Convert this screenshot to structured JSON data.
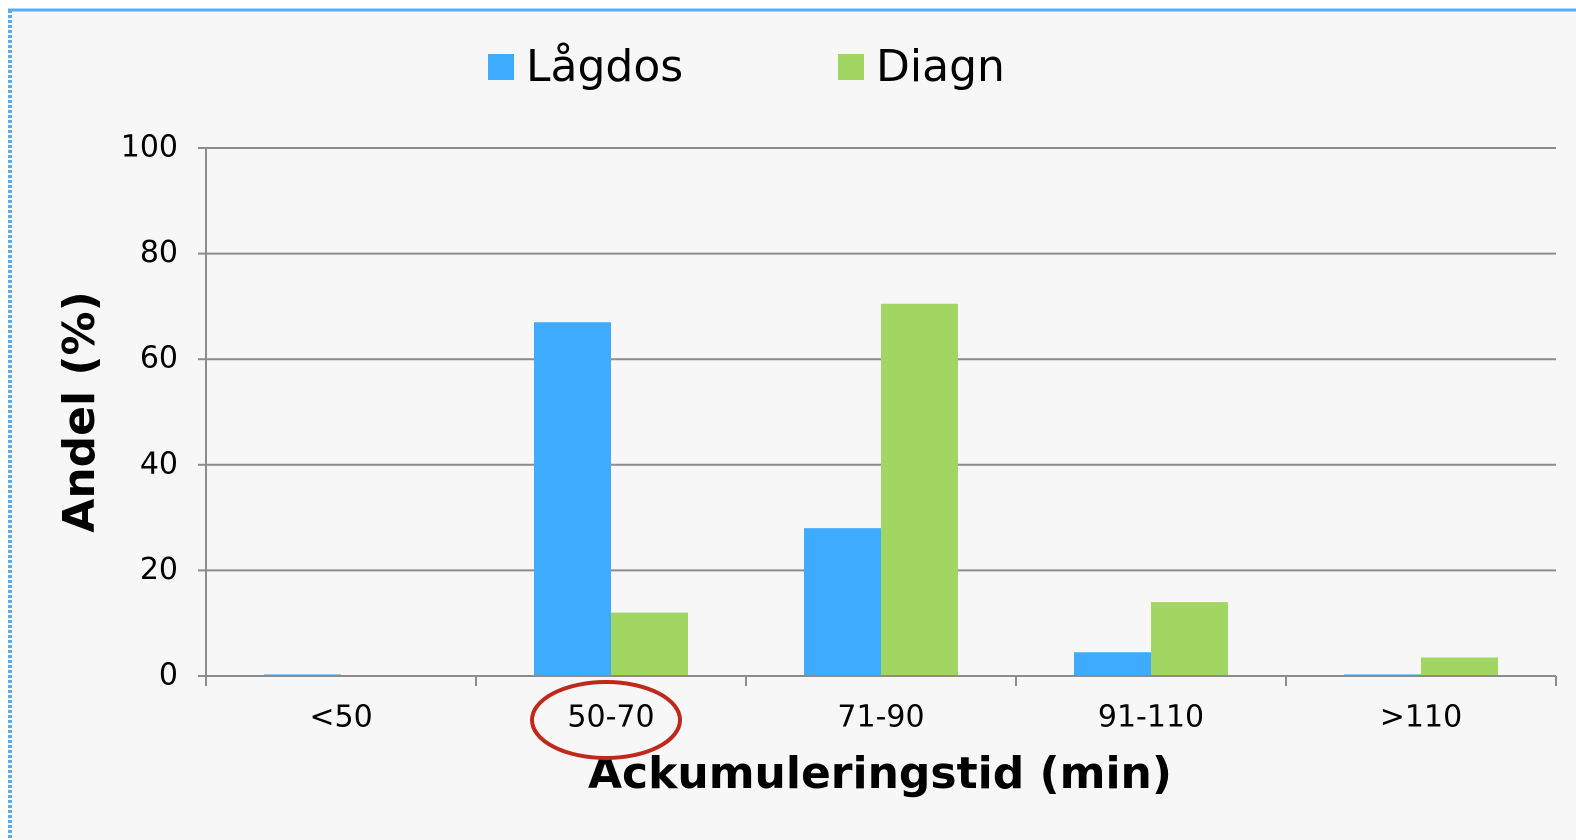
{
  "chart_data": {
    "type": "bar",
    "x_label": "Ackumuleringstid (min)",
    "y_label": "Andel (%)",
    "categories": [
      "<50",
      "50-70",
      "71-90",
      "91-110",
      ">110"
    ],
    "series": [
      {
        "name": "Lågdos",
        "color": "#3fabff",
        "values": [
          0.3,
          67,
          28,
          4.5,
          0.3
        ]
      },
      {
        "name": "Diagn",
        "color": "#a2d662",
        "values": [
          0,
          12,
          70.5,
          14,
          3.5
        ]
      }
    ],
    "ylim": [
      0,
      100
    ],
    "yticks": [
      0,
      20,
      40,
      60,
      80,
      100
    ],
    "grid": true,
    "legend": "top"
  }
}
